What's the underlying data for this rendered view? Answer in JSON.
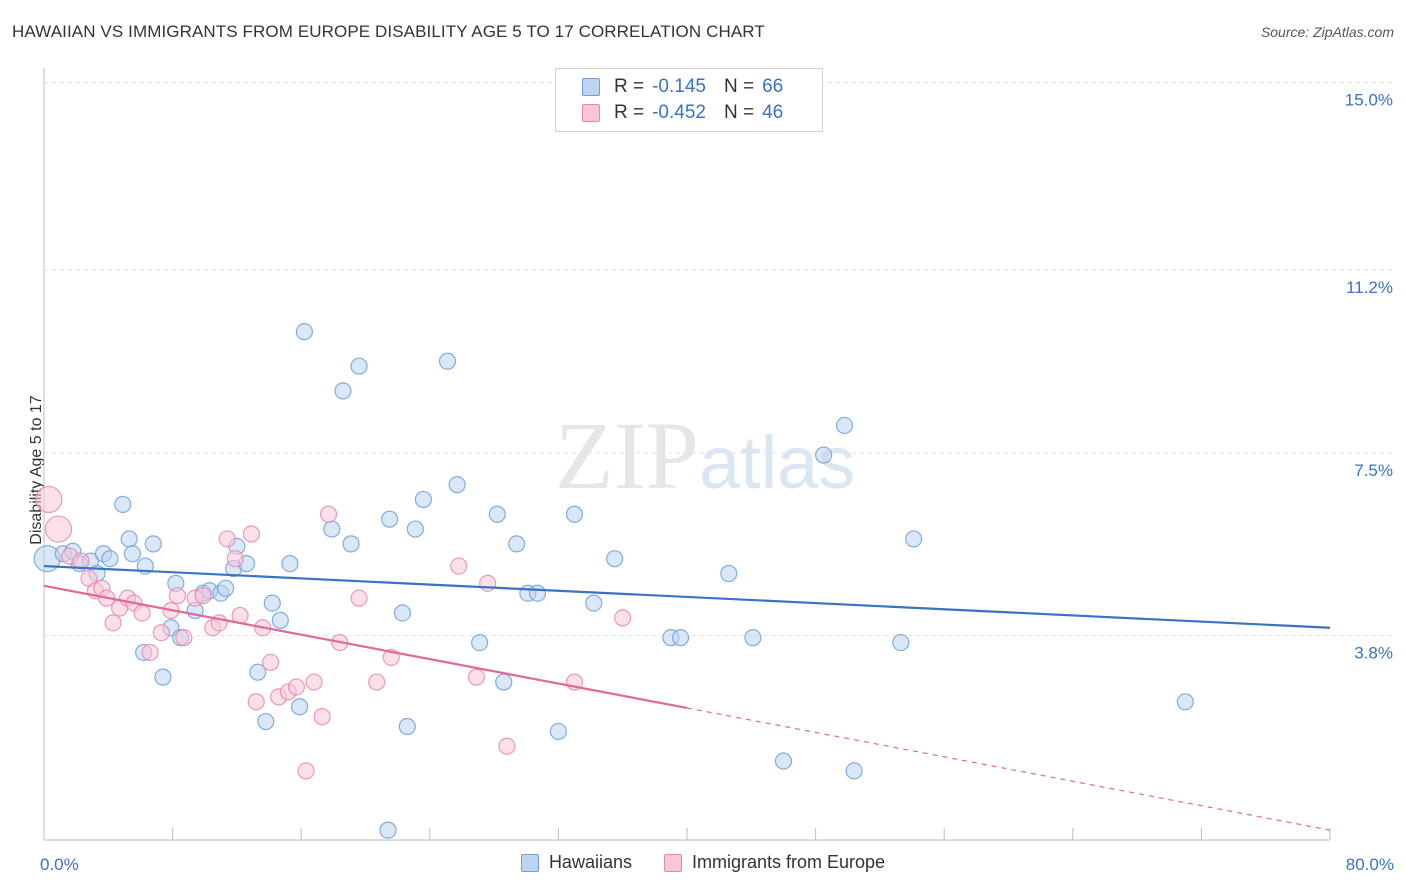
{
  "title": "HAWAIIAN VS IMMIGRANTS FROM EUROPE DISABILITY AGE 5 TO 17 CORRELATION CHART",
  "source": "Source: ZipAtlas.com",
  "watermark": {
    "zip": "ZIP",
    "atlas": "atlas"
  },
  "legend": {
    "rows": [
      {
        "r_label": "R =",
        "r_value": "-0.145",
        "n_label": "N =",
        "n_value": "66",
        "color": "#6fa0d8",
        "fill": "#bcd4f0"
      },
      {
        "r_label": "R =",
        "r_value": "-0.452",
        "n_label": "N =",
        "n_value": "46",
        "color": "#e888aa",
        "fill": "#f8c6d8"
      }
    ]
  },
  "bottom_legend": [
    "Hawaiians",
    "Immigrants from Europe"
  ],
  "chart_data": {
    "type": "scatter",
    "xlabel": "",
    "ylabel": "Disability Age 5 to 17",
    "xlim": [
      0,
      80
    ],
    "ylim": [
      0,
      15.5
    ],
    "x_tick_labels": [
      "0.0%",
      "80.0%"
    ],
    "y_ticks": [
      3.8,
      7.5,
      11.2,
      15.0
    ],
    "y_tick_labels": [
      "3.8%",
      "7.5%",
      "11.2%",
      "15.0%"
    ],
    "grid": true,
    "legend_position": "top-center",
    "series": [
      {
        "name": "Hawaiians",
        "color": "#6fa0d8",
        "fill": "#bcd4f0",
        "trend": {
          "x": [
            0,
            80
          ],
          "y": [
            5.55,
            4.3
          ],
          "dashed_from": null
        },
        "points": [
          [
            0.2,
            5.7
          ],
          [
            1.2,
            5.8
          ],
          [
            1.8,
            5.85
          ],
          [
            2.2,
            5.6
          ],
          [
            2.9,
            5.65
          ],
          [
            3.3,
            5.4
          ],
          [
            3.7,
            5.8
          ],
          [
            4.1,
            5.7
          ],
          [
            4.9,
            6.8
          ],
          [
            5.3,
            6.1
          ],
          [
            5.5,
            5.8
          ],
          [
            6.2,
            3.8
          ],
          [
            6.3,
            5.55
          ],
          [
            6.8,
            6.0
          ],
          [
            7.4,
            3.3
          ],
          [
            7.9,
            4.3
          ],
          [
            8.2,
            5.2
          ],
          [
            8.5,
            4.1
          ],
          [
            9.4,
            4.65
          ],
          [
            9.9,
            5.0
          ],
          [
            10.3,
            5.05
          ],
          [
            11.0,
            5.0
          ],
          [
            11.3,
            5.1
          ],
          [
            11.8,
            5.5
          ],
          [
            12.0,
            5.95
          ],
          [
            12.6,
            5.6
          ],
          [
            13.3,
            3.4
          ],
          [
            13.8,
            2.4
          ],
          [
            14.2,
            4.8
          ],
          [
            14.7,
            4.45
          ],
          [
            15.3,
            5.6
          ],
          [
            15.9,
            2.7
          ],
          [
            16.2,
            10.3
          ],
          [
            17.9,
            6.3
          ],
          [
            18.6,
            9.1
          ],
          [
            19.1,
            6.0
          ],
          [
            19.6,
            9.6
          ],
          [
            21.4,
            0.2
          ],
          [
            21.5,
            6.5
          ],
          [
            22.3,
            4.6
          ],
          [
            22.6,
            2.3
          ],
          [
            23.1,
            6.3
          ],
          [
            23.6,
            6.9
          ],
          [
            25.1,
            9.7
          ],
          [
            25.7,
            7.2
          ],
          [
            27.1,
            4.0
          ],
          [
            28.2,
            6.6
          ],
          [
            28.6,
            3.2
          ],
          [
            29.4,
            6.0
          ],
          [
            30.1,
            5.0
          ],
          [
            30.7,
            5.0
          ],
          [
            32.0,
            2.2
          ],
          [
            33.0,
            6.6
          ],
          [
            34.2,
            4.8
          ],
          [
            35.5,
            5.7
          ],
          [
            39.0,
            4.1
          ],
          [
            39.6,
            4.1
          ],
          [
            42.6,
            5.4
          ],
          [
            44.1,
            4.1
          ],
          [
            46.0,
            1.6
          ],
          [
            48.5,
            7.8
          ],
          [
            49.8,
            8.4
          ],
          [
            50.4,
            1.4
          ],
          [
            53.3,
            4.0
          ],
          [
            54.1,
            6.1
          ],
          [
            71.0,
            2.8
          ]
        ]
      },
      {
        "name": "Immigrants from Europe",
        "color": "#e888aa",
        "fill": "#f8c6d8",
        "trend": {
          "x": [
            0,
            80
          ],
          "y": [
            5.15,
            0.2
          ],
          "solid_to": 40
        },
        "points": [
          [
            0.3,
            6.9
          ],
          [
            0.9,
            6.3
          ],
          [
            1.6,
            5.75
          ],
          [
            2.3,
            5.65
          ],
          [
            2.8,
            5.3
          ],
          [
            3.2,
            5.05
          ],
          [
            3.6,
            5.1
          ],
          [
            3.9,
            4.9
          ],
          [
            4.3,
            4.4
          ],
          [
            4.7,
            4.7
          ],
          [
            5.2,
            4.9
          ],
          [
            5.6,
            4.8
          ],
          [
            6.1,
            4.6
          ],
          [
            6.6,
            3.8
          ],
          [
            7.3,
            4.2
          ],
          [
            7.9,
            4.65
          ],
          [
            8.3,
            4.95
          ],
          [
            8.7,
            4.1
          ],
          [
            9.4,
            4.9
          ],
          [
            9.9,
            4.95
          ],
          [
            10.5,
            4.3
          ],
          [
            10.9,
            4.4
          ],
          [
            11.4,
            6.1
          ],
          [
            11.9,
            5.7
          ],
          [
            12.2,
            4.55
          ],
          [
            12.9,
            6.2
          ],
          [
            13.2,
            2.8
          ],
          [
            13.6,
            4.3
          ],
          [
            14.1,
            3.6
          ],
          [
            14.6,
            2.9
          ],
          [
            15.2,
            3.0
          ],
          [
            15.7,
            3.1
          ],
          [
            16.3,
            1.4
          ],
          [
            16.8,
            3.2
          ],
          [
            17.3,
            2.5
          ],
          [
            17.7,
            6.6
          ],
          [
            18.4,
            4.0
          ],
          [
            19.6,
            4.9
          ],
          [
            20.7,
            3.2
          ],
          [
            21.6,
            3.7
          ],
          [
            25.8,
            5.55
          ],
          [
            26.9,
            3.3
          ],
          [
            27.6,
            5.2
          ],
          [
            28.8,
            1.9
          ],
          [
            33.0,
            3.2
          ],
          [
            36.0,
            4.5
          ]
        ]
      }
    ]
  }
}
